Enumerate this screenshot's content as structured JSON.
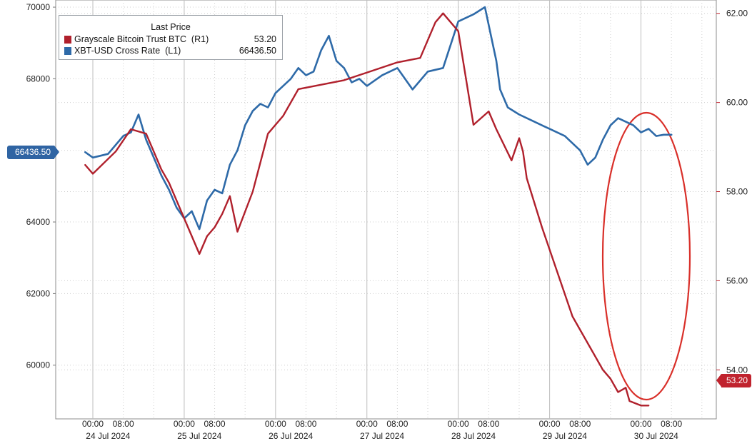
{
  "chart_data": {
    "type": "line",
    "title": "",
    "legend": {
      "title": "Last Price",
      "placement": "top-left",
      "entries": [
        {
          "name": "Grayscale Bitcoin Trust BTC  (R1)",
          "value": "53.20",
          "color": "#b0202c"
        },
        {
          "name": "XBT-USD Cross Rate  (L1)",
          "value": "66436.50",
          "color": "#2e6aa8"
        }
      ]
    },
    "x_axis": {
      "time_labels": [
        "00:00",
        "08:00"
      ],
      "dates": [
        "24 Jul 2024",
        "25 Jul 2024",
        "26 Jul 2024",
        "27 Jul 2024",
        "28 Jul 2024",
        "29 Jul 2024",
        "30 Jul 2024"
      ],
      "range_hours": [
        -2,
        158
      ]
    },
    "left_axis": {
      "ticks": [
        "70000",
        "68000",
        "66000",
        "64000",
        "62000",
        "60000"
      ],
      "range": [
        58500,
        70200
      ],
      "last_value_label": "66436.50",
      "color": "#2e6aa8"
    },
    "right_axis": {
      "ticks": [
        "62.00",
        "60.00",
        "58.00",
        "56.00",
        "54.00"
      ],
      "range": [
        52.9,
        62.3
      ],
      "last_value_label": "53.20",
      "color": "#c0232e"
    },
    "grid": true,
    "series": [
      {
        "name": "XBT-USD Cross Rate  (L1)",
        "axis": "left",
        "color": "#2e6aa8",
        "x_hours": [
          -2,
          0,
          4,
          8,
          10,
          12,
          14,
          16,
          18,
          20,
          22,
          24,
          26,
          28,
          30,
          32,
          34,
          36,
          38,
          40,
          42,
          44,
          46,
          48,
          50,
          52,
          54,
          56,
          58,
          60,
          62,
          64,
          66,
          68,
          70,
          72,
          76,
          80,
          84,
          88,
          92,
          96,
          100,
          103,
          106,
          107,
          109,
          112,
          116,
          120,
          124,
          128,
          130,
          132,
          134,
          136,
          138,
          140,
          142,
          144,
          146,
          148,
          150,
          152
        ],
        "values": [
          65950,
          65800,
          65900,
          66400,
          66500,
          67000,
          66300,
          65800,
          65300,
          64900,
          64400,
          64100,
          64300,
          63800,
          64600,
          64900,
          64800,
          65600,
          66000,
          66700,
          67100,
          67300,
          67200,
          67600,
          67800,
          68000,
          68300,
          68100,
          68200,
          68800,
          69200,
          68500,
          68300,
          67900,
          68000,
          67800,
          68100,
          68300,
          67700,
          68200,
          68300,
          69600,
          69800,
          70000,
          68500,
          67700,
          67200,
          67000,
          66800,
          66600,
          66400,
          66000,
          65600,
          65800,
          66300,
          66700,
          66900,
          66800,
          66700,
          66500,
          66600,
          66400,
          66436.5,
          66436.5
        ]
      },
      {
        "name": "Grayscale Bitcoin Trust BTC  (R1)",
        "axis": "right",
        "color": "#b0202c",
        "x_hours": [
          -2,
          0,
          6,
          10,
          14,
          16,
          18,
          20,
          24,
          28,
          30,
          32,
          34,
          36,
          38,
          42,
          46,
          50,
          54,
          66,
          80,
          86,
          90,
          92,
          96,
          100,
          104,
          106,
          110,
          112,
          113,
          114,
          118,
          126,
          134,
          136,
          138,
          140,
          141,
          144,
          146
        ],
        "values": [
          58.6,
          58.4,
          58.9,
          59.4,
          59.3,
          58.9,
          58.5,
          58.2,
          57.4,
          56.6,
          57.0,
          57.2,
          57.5,
          57.9,
          57.1,
          58.0,
          59.3,
          59.7,
          60.3,
          60.5,
          60.9,
          61.0,
          61.8,
          62.0,
          61.6,
          59.5,
          59.8,
          59.4,
          58.7,
          59.2,
          58.9,
          58.3,
          57.2,
          55.2,
          54.0,
          53.8,
          53.5,
          53.6,
          53.3,
          53.2,
          53.2
        ]
      }
    ]
  }
}
